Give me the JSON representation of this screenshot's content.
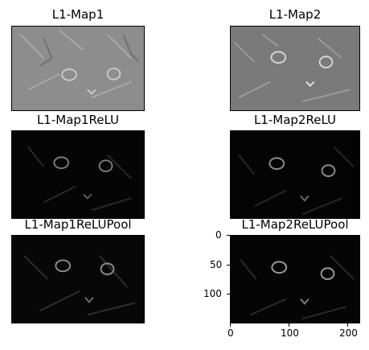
{
  "figure": {
    "panels": [
      {
        "title": "L1-Map1",
        "style": "gray"
      },
      {
        "title": "L1-Map2",
        "style": "gray"
      },
      {
        "title": "L1-Map1ReLU",
        "style": "dark"
      },
      {
        "title": "L1-Map2ReLU",
        "style": "dark"
      },
      {
        "title": "L1-Map1ReLUPool",
        "style": "dark"
      },
      {
        "title": "L1-Map2ReLUPool",
        "style": "dark"
      }
    ],
    "axes": {
      "yticks": [
        "0",
        "50",
        "100"
      ],
      "xticks": [
        "0",
        "100",
        "200"
      ]
    }
  }
}
